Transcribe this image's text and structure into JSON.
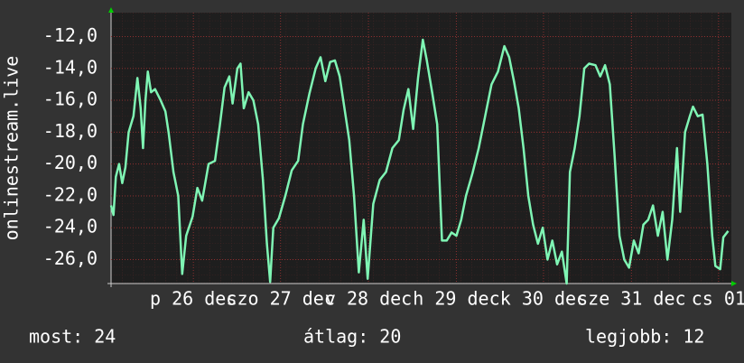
{
  "chart_data": {
    "type": "line",
    "y_label": "onlinestream.live",
    "x": [
      0.0,
      0.03,
      0.06,
      0.1,
      0.14,
      0.18,
      0.22,
      0.28,
      0.33,
      0.37,
      0.4,
      0.43,
      0.46,
      0.5,
      0.55,
      0.62,
      0.68,
      0.72,
      0.78,
      0.84,
      0.89,
      0.94,
      1.02,
      1.08,
      1.14,
      1.22,
      1.3,
      1.36,
      1.42,
      1.48,
      1.52,
      1.58,
      1.62,
      1.66,
      1.72,
      1.78,
      1.84,
      1.9,
      1.95,
      1.99,
      2.03,
      2.1,
      2.18,
      2.26,
      2.34,
      2.4,
      2.48,
      2.56,
      2.62,
      2.68,
      2.74,
      2.8,
      2.86,
      2.92,
      2.98,
      3.04,
      3.1,
      3.16,
      3.21,
      3.28,
      3.36,
      3.44,
      3.52,
      3.6,
      3.66,
      3.72,
      3.78,
      3.84,
      3.9,
      3.95,
      4.02,
      4.08,
      4.14,
      4.2,
      4.26,
      4.32,
      4.38,
      4.44,
      4.52,
      4.6,
      4.68,
      4.76,
      4.84,
      4.92,
      4.98,
      5.04,
      5.1,
      5.16,
      5.22,
      5.28,
      5.34,
      5.4,
      5.46,
      5.52,
      5.58,
      5.64,
      5.7,
      5.74,
      5.8,
      5.86,
      5.92,
      5.98,
      6.06,
      6.12,
      6.18,
      6.24,
      6.3,
      6.36,
      6.42,
      6.48,
      6.54,
      6.6,
      6.66,
      6.72,
      6.78,
      6.84,
      6.9,
      6.96,
      7.02,
      7.08,
      7.12,
      7.18,
      7.24,
      7.28,
      7.34,
      7.4,
      7.46,
      7.52,
      7.56,
      7.62,
      7.66,
      7.72
    ],
    "series": [
      {
        "color": "#7ff5b4",
        "values": [
          -22.6,
          -23.2,
          -20.8,
          -20.0,
          -21.2,
          -20.2,
          -18.0,
          -17.0,
          -14.6,
          -16.5,
          -19.0,
          -16.0,
          -14.2,
          -15.5,
          -15.3,
          -16.0,
          -16.7,
          -18.0,
          -20.5,
          -22.0,
          -26.9,
          -24.5,
          -23.3,
          -21.5,
          -22.3,
          -20.0,
          -19.8,
          -17.6,
          -15.2,
          -14.5,
          -16.2,
          -14.0,
          -13.7,
          -16.5,
          -15.5,
          -16.0,
          -17.5,
          -21.0,
          -25.0,
          -27.4,
          -24.0,
          -23.4,
          -22.0,
          -20.4,
          -19.8,
          -17.5,
          -15.6,
          -14.0,
          -13.3,
          -14.8,
          -13.6,
          -13.5,
          -14.5,
          -16.5,
          -18.5,
          -22.0,
          -26.8,
          -23.5,
          -27.2,
          -22.5,
          -21.0,
          -20.5,
          -19.0,
          -18.5,
          -16.6,
          -15.3,
          -17.8,
          -14.6,
          -12.2,
          -13.5,
          -15.6,
          -17.5,
          -24.8,
          -24.8,
          -24.3,
          -24.5,
          -23.5,
          -22.0,
          -20.6,
          -19.0,
          -17.0,
          -15.0,
          -14.2,
          -12.6,
          -13.3,
          -14.8,
          -16.5,
          -19.0,
          -22.0,
          -23.8,
          -25.0,
          -24.0,
          -26.0,
          -24.8,
          -26.3,
          -25.5,
          -27.5,
          -20.5,
          -19.0,
          -17.0,
          -14.0,
          -13.7,
          -13.8,
          -14.5,
          -13.8,
          -15.0,
          -19.5,
          -24.5,
          -26.0,
          -26.5,
          -24.8,
          -25.6,
          -23.8,
          -23.5,
          -22.6,
          -24.5,
          -23.0,
          -26.0,
          -23.5,
          -19.0,
          -23.0,
          -18.0,
          -17.0,
          -16.4,
          -17.0,
          -16.9,
          -20.0,
          -24.5,
          -26.4,
          -26.6,
          -24.6,
          -24.2
        ]
      }
    ],
    "xlim": [
      0,
      7.76
    ],
    "xticks": [
      {
        "value": 1.03,
        "label": "p 26 dec"
      },
      {
        "value": 2.12,
        "label": "szo 27 dec"
      },
      {
        "value": 3.22,
        "label": "v 28 dec"
      },
      {
        "value": 4.32,
        "label": "h 29 dec"
      },
      {
        "value": 5.41,
        "label": "k 30 dec"
      },
      {
        "value": 6.51,
        "label": "sze 31 dec"
      },
      {
        "value": 7.6,
        "label": "cs 01"
      }
    ],
    "ylim": [
      -27.5,
      -10.5
    ],
    "yticks": [
      {
        "value": -12,
        "label": "-12,0"
      },
      {
        "value": -14,
        "label": "-14,0"
      },
      {
        "value": -16,
        "label": "-16,0"
      },
      {
        "value": -18,
        "label": "-18,0"
      },
      {
        "value": -20,
        "label": "-20,0"
      },
      {
        "value": -22,
        "label": "-22,0"
      },
      {
        "value": -24,
        "label": "-24,0"
      },
      {
        "value": -26,
        "label": "-26,0"
      }
    ],
    "grid": true,
    "footer": {
      "current": "most: 24",
      "average": "átlag: 20",
      "best": "legjobb: 12"
    }
  }
}
